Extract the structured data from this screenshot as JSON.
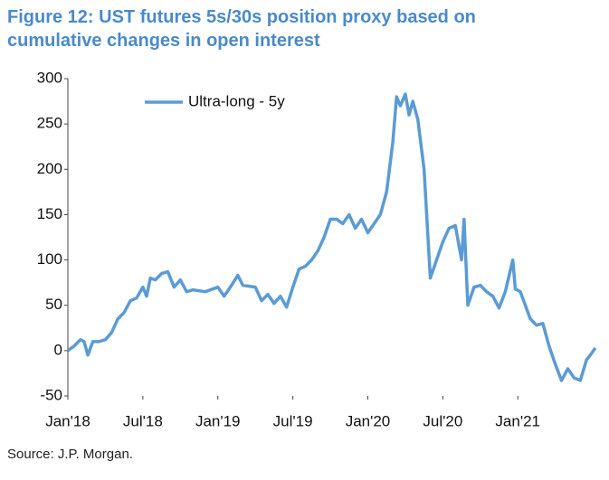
{
  "chart_data": {
    "type": "line",
    "title": "Figure 12: UST futures 5s/30s position proxy based on cumulative changes in open interest",
    "source": "Source: J.P. Morgan.",
    "xlim": [
      0,
      42.5
    ],
    "xticks": [
      {
        "value": 0,
        "label": "Jan'18"
      },
      {
        "value": 6,
        "label": "Jul'18"
      },
      {
        "value": 12,
        "label": "Jan'19"
      },
      {
        "value": 18,
        "label": "Jul'19"
      },
      {
        "value": 24,
        "label": "Jan'20"
      },
      {
        "value": 30,
        "label": "Jul'20"
      },
      {
        "value": 36,
        "label": "Jan'21"
      }
    ],
    "ylim": [
      -50,
      300
    ],
    "yticks": [
      -50,
      0,
      50,
      100,
      150,
      200,
      250,
      300
    ],
    "grid": false,
    "legend": "top-left",
    "x": [
      0,
      0.5,
      1,
      1.3,
      1.6,
      2,
      2.5,
      3,
      3.5,
      4,
      4.5,
      5,
      5.5,
      6,
      6.3,
      6.6,
      7,
      7.5,
      8,
      8.5,
      9,
      9.5,
      10,
      11,
      12,
      12.5,
      13,
      13.6,
      14,
      15,
      15.5,
      16,
      16.5,
      17,
      17.5,
      18,
      18.5,
      19,
      19.5,
      20,
      20.5,
      21,
      21.5,
      22,
      22.5,
      23,
      23.5,
      24,
      24.5,
      25,
      25.5,
      26,
      26.3,
      26.6,
      27,
      27.3,
      27.6,
      28,
      28.5,
      29,
      29.5,
      30,
      30.5,
      31,
      31.5,
      31.7,
      32,
      32.5,
      33,
      33.5,
      34,
      34.5,
      35,
      35.6,
      35.8,
      36.2,
      37,
      37.5,
      38,
      38.5,
      39,
      39.5,
      40,
      40.5,
      41,
      41.5,
      41.8,
      42.2
    ],
    "series": [
      {
        "name": "Ultra-long - 5y",
        "color": "#5b9bd5",
        "values": [
          0,
          5,
          12,
          10,
          -5,
          10,
          10,
          12,
          20,
          35,
          42,
          55,
          58,
          70,
          60,
          80,
          78,
          85,
          87,
          70,
          78,
          65,
          67,
          65,
          70,
          60,
          70,
          83,
          72,
          70,
          55,
          62,
          52,
          60,
          48,
          70,
          90,
          93,
          100,
          110,
          125,
          145,
          145,
          140,
          150,
          135,
          145,
          130,
          140,
          150,
          175,
          230,
          280,
          270,
          283,
          260,
          275,
          255,
          200,
          80,
          100,
          120,
          135,
          138,
          100,
          145,
          50,
          70,
          72,
          65,
          60,
          47,
          65,
          100,
          68,
          65,
          35,
          28,
          30,
          5,
          -15,
          -33,
          -20,
          -30,
          -33,
          -10,
          -5,
          3
        ]
      }
    ]
  }
}
